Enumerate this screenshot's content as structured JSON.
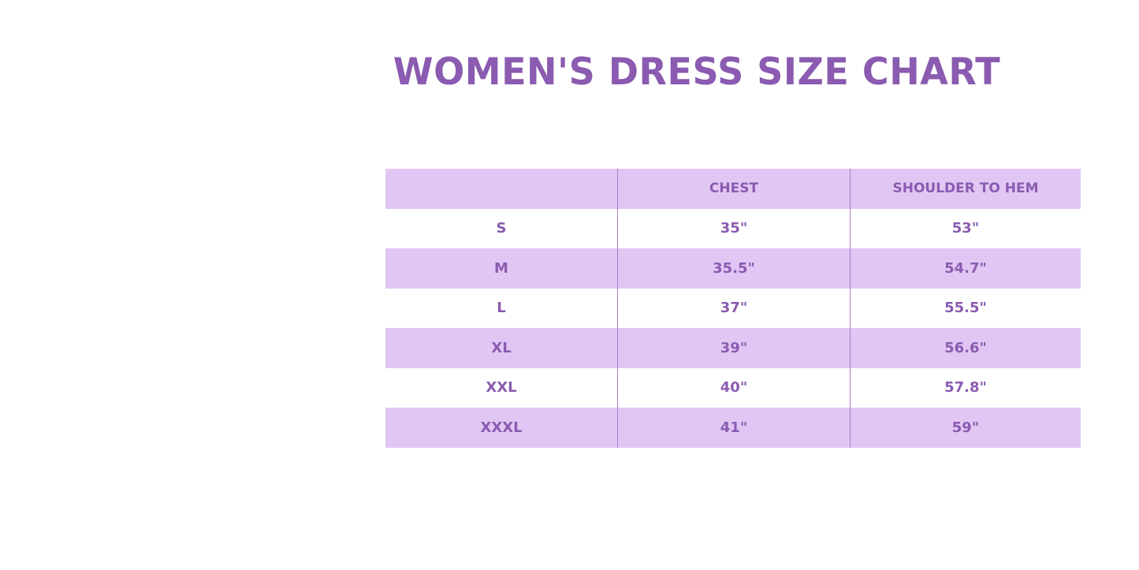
{
  "title": "WOMEN'S DRESS SIZE CHART",
  "colors": {
    "accent": "#8a5bb0",
    "row_fill": "#e1c6f4",
    "divider": "#a77fc8"
  },
  "table": {
    "headers": [
      "",
      "CHEST",
      "SHOULDER TO HEM"
    ],
    "rows": [
      [
        "S",
        "35\"",
        "53\""
      ],
      [
        "M",
        "35.5\"",
        "54.7\""
      ],
      [
        "L",
        "37\"",
        "55.5\""
      ],
      [
        "XL",
        "39\"",
        "56.6\""
      ],
      [
        "XXL",
        "40\"",
        "57.8\""
      ],
      [
        "XXXL",
        "41\"",
        "59\""
      ]
    ]
  }
}
